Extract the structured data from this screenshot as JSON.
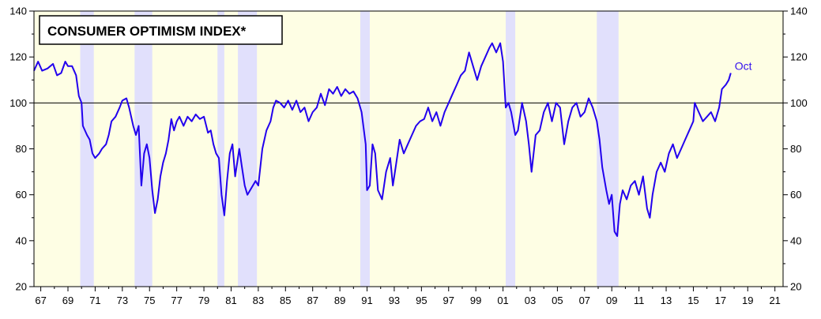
{
  "chart_data": {
    "type": "line",
    "title": "CONSUMER OPTIMISM INDEX*",
    "xlabel": "",
    "ylabel": "",
    "xlim": [
      1966.5,
      2021.6
    ],
    "ylim": [
      20,
      140
    ],
    "y_ticks": [
      20,
      40,
      60,
      80,
      100,
      120,
      140
    ],
    "x_ticks": [
      {
        "year": 1967,
        "label": "67"
      },
      {
        "year": 1969,
        "label": "69"
      },
      {
        "year": 1971,
        "label": "71"
      },
      {
        "year": 1973,
        "label": "73"
      },
      {
        "year": 1975,
        "label": "75"
      },
      {
        "year": 1977,
        "label": "77"
      },
      {
        "year": 1979,
        "label": "79"
      },
      {
        "year": 1981,
        "label": "81"
      },
      {
        "year": 1983,
        "label": "83"
      },
      {
        "year": 1985,
        "label": "85"
      },
      {
        "year": 1987,
        "label": "87"
      },
      {
        "year": 1989,
        "label": "89"
      },
      {
        "year": 1991,
        "label": "91"
      },
      {
        "year": 1993,
        "label": "93"
      },
      {
        "year": 1995,
        "label": "95"
      },
      {
        "year": 1997,
        "label": "97"
      },
      {
        "year": 1999,
        "label": "99"
      },
      {
        "year": 2001,
        "label": "01"
      },
      {
        "year": 2003,
        "label": "03"
      },
      {
        "year": 2005,
        "label": "05"
      },
      {
        "year": 2007,
        "label": "07"
      },
      {
        "year": 2009,
        "label": "09"
      },
      {
        "year": 2011,
        "label": "11"
      },
      {
        "year": 2013,
        "label": "13"
      },
      {
        "year": 2015,
        "label": "15"
      },
      {
        "year": 2017,
        "label": "17"
      },
      {
        "year": 2019,
        "label": "19"
      },
      {
        "year": 2021,
        "label": "21"
      }
    ],
    "reference_line": 100,
    "grid": false,
    "recessions": [
      [
        1969.9,
        1970.9
      ],
      [
        1973.9,
        1975.2
      ],
      [
        1980.0,
        1980.5
      ],
      [
        1981.5,
        1982.9
      ],
      [
        1990.5,
        1991.2
      ],
      [
        2001.2,
        2001.9
      ],
      [
        2007.9,
        2009.5
      ]
    ],
    "annotation": {
      "text": "Oct",
      "x": 2017.75,
      "y": 113
    },
    "colors": {
      "background": "#fefee4",
      "recession": "#e1e0fc",
      "line": "#2200ee",
      "annotation": "#3311ee",
      "axis": "#000000"
    },
    "series": [
      {
        "values": [
          [
            1966.5,
            114
          ],
          [
            1966.8,
            118
          ],
          [
            1967.1,
            114
          ],
          [
            1967.5,
            115
          ],
          [
            1967.9,
            117
          ],
          [
            1968.2,
            112
          ],
          [
            1968.5,
            113
          ],
          [
            1968.8,
            118
          ],
          [
            1969.0,
            116
          ],
          [
            1969.3,
            116
          ],
          [
            1969.6,
            112
          ],
          [
            1969.8,
            103
          ],
          [
            1970.0,
            100
          ],
          [
            1970.1,
            90
          ],
          [
            1970.4,
            86
          ],
          [
            1970.6,
            84
          ],
          [
            1970.8,
            78
          ],
          [
            1971.0,
            76
          ],
          [
            1971.3,
            78
          ],
          [
            1971.5,
            80
          ],
          [
            1971.8,
            82
          ],
          [
            1972.0,
            86
          ],
          [
            1972.2,
            92
          ],
          [
            1972.5,
            94
          ],
          [
            1972.8,
            98
          ],
          [
            1973.0,
            101
          ],
          [
            1973.3,
            102
          ],
          [
            1973.5,
            98
          ],
          [
            1973.8,
            90
          ],
          [
            1974.0,
            86
          ],
          [
            1974.2,
            90
          ],
          [
            1974.4,
            64
          ],
          [
            1974.6,
            78
          ],
          [
            1974.8,
            82
          ],
          [
            1975.0,
            76
          ],
          [
            1975.2,
            62
          ],
          [
            1975.4,
            52
          ],
          [
            1975.6,
            58
          ],
          [
            1975.8,
            68
          ],
          [
            1976.0,
            74
          ],
          [
            1976.2,
            78
          ],
          [
            1976.4,
            84
          ],
          [
            1976.6,
            93
          ],
          [
            1976.8,
            88
          ],
          [
            1977.0,
            92
          ],
          [
            1977.2,
            94
          ],
          [
            1977.5,
            90
          ],
          [
            1977.8,
            94
          ],
          [
            1978.1,
            92
          ],
          [
            1978.4,
            95
          ],
          [
            1978.7,
            93
          ],
          [
            1979.0,
            94
          ],
          [
            1979.3,
            87
          ],
          [
            1979.5,
            88
          ],
          [
            1979.7,
            82
          ],
          [
            1979.9,
            78
          ],
          [
            1980.1,
            76
          ],
          [
            1980.3,
            60
          ],
          [
            1980.5,
            51
          ],
          [
            1980.7,
            66
          ],
          [
            1980.9,
            78
          ],
          [
            1981.1,
            82
          ],
          [
            1981.3,
            68
          ],
          [
            1981.6,
            80
          ],
          [
            1981.8,
            72
          ],
          [
            1982.0,
            64
          ],
          [
            1982.2,
            60
          ],
          [
            1982.5,
            63
          ],
          [
            1982.8,
            66
          ],
          [
            1983.0,
            64
          ],
          [
            1983.3,
            80
          ],
          [
            1983.6,
            88
          ],
          [
            1983.9,
            92
          ],
          [
            1984.1,
            98
          ],
          [
            1984.3,
            101
          ],
          [
            1984.6,
            100
          ],
          [
            1984.9,
            98
          ],
          [
            1985.2,
            101
          ],
          [
            1985.5,
            97
          ],
          [
            1985.8,
            101
          ],
          [
            1986.1,
            96
          ],
          [
            1986.4,
            98
          ],
          [
            1986.7,
            92
          ],
          [
            1987.0,
            96
          ],
          [
            1987.3,
            98
          ],
          [
            1987.6,
            104
          ],
          [
            1987.9,
            99
          ],
          [
            1988.2,
            106
          ],
          [
            1988.5,
            104
          ],
          [
            1988.8,
            107
          ],
          [
            1989.1,
            103
          ],
          [
            1989.4,
            106
          ],
          [
            1989.7,
            104
          ],
          [
            1990.0,
            105
          ],
          [
            1990.3,
            102
          ],
          [
            1990.6,
            96
          ],
          [
            1990.9,
            82
          ],
          [
            1991.0,
            62
          ],
          [
            1991.2,
            64
          ],
          [
            1991.4,
            82
          ],
          [
            1991.6,
            78
          ],
          [
            1991.8,
            62
          ],
          [
            1992.1,
            58
          ],
          [
            1992.4,
            70
          ],
          [
            1992.7,
            76
          ],
          [
            1992.9,
            64
          ],
          [
            1993.1,
            72
          ],
          [
            1993.4,
            84
          ],
          [
            1993.7,
            78
          ],
          [
            1994.0,
            82
          ],
          [
            1994.3,
            86
          ],
          [
            1994.6,
            90
          ],
          [
            1994.9,
            92
          ],
          [
            1995.2,
            93
          ],
          [
            1995.5,
            98
          ],
          [
            1995.8,
            92
          ],
          [
            1996.1,
            96
          ],
          [
            1996.4,
            90
          ],
          [
            1996.7,
            96
          ],
          [
            1997.0,
            100
          ],
          [
            1997.3,
            104
          ],
          [
            1997.6,
            108
          ],
          [
            1997.9,
            112
          ],
          [
            1998.2,
            114
          ],
          [
            1998.5,
            122
          ],
          [
            1998.8,
            116
          ],
          [
            1999.1,
            110
          ],
          [
            1999.4,
            116
          ],
          [
            1999.7,
            120
          ],
          [
            2000.0,
            124
          ],
          [
            2000.2,
            126
          ],
          [
            2000.5,
            122
          ],
          [
            2000.8,
            126
          ],
          [
            2001.0,
            118
          ],
          [
            2001.2,
            98
          ],
          [
            2001.4,
            100
          ],
          [
            2001.6,
            96
          ],
          [
            2001.9,
            86
          ],
          [
            2002.1,
            88
          ],
          [
            2002.4,
            100
          ],
          [
            2002.7,
            92
          ],
          [
            2002.9,
            82
          ],
          [
            2003.1,
            70
          ],
          [
            2003.4,
            86
          ],
          [
            2003.7,
            88
          ],
          [
            2004.0,
            96
          ],
          [
            2004.3,
            100
          ],
          [
            2004.6,
            92
          ],
          [
            2004.9,
            100
          ],
          [
            2005.2,
            98
          ],
          [
            2005.5,
            82
          ],
          [
            2005.8,
            92
          ],
          [
            2006.1,
            98
          ],
          [
            2006.4,
            100
          ],
          [
            2006.7,
            94
          ],
          [
            2007.0,
            96
          ],
          [
            2007.3,
            102
          ],
          [
            2007.6,
            98
          ],
          [
            2007.9,
            92
          ],
          [
            2008.1,
            84
          ],
          [
            2008.3,
            72
          ],
          [
            2008.6,
            62
          ],
          [
            2008.8,
            56
          ],
          [
            2009.0,
            60
          ],
          [
            2009.2,
            44
          ],
          [
            2009.4,
            42
          ],
          [
            2009.6,
            56
          ],
          [
            2009.8,
            62
          ],
          [
            2010.1,
            58
          ],
          [
            2010.4,
            64
          ],
          [
            2010.7,
            66
          ],
          [
            2011.0,
            60
          ],
          [
            2011.3,
            68
          ],
          [
            2011.6,
            54
          ],
          [
            2011.8,
            50
          ],
          [
            2012.0,
            60
          ],
          [
            2012.3,
            70
          ],
          [
            2012.6,
            74
          ],
          [
            2012.9,
            70
          ],
          [
            2013.2,
            78
          ],
          [
            2013.5,
            82
          ],
          [
            2013.8,
            76
          ],
          [
            2014.1,
            80
          ],
          [
            2014.4,
            84
          ],
          [
            2014.7,
            88
          ],
          [
            2015.0,
            92
          ],
          [
            2015.1,
            100
          ],
          [
            2015.4,
            96
          ],
          [
            2015.7,
            92
          ],
          [
            2016.0,
            94
          ],
          [
            2016.3,
            96
          ],
          [
            2016.6,
            92
          ],
          [
            2016.9,
            98
          ],
          [
            2017.1,
            106
          ],
          [
            2017.4,
            108
          ],
          [
            2017.6,
            110
          ],
          [
            2017.75,
            113
          ]
        ]
      }
    ]
  }
}
